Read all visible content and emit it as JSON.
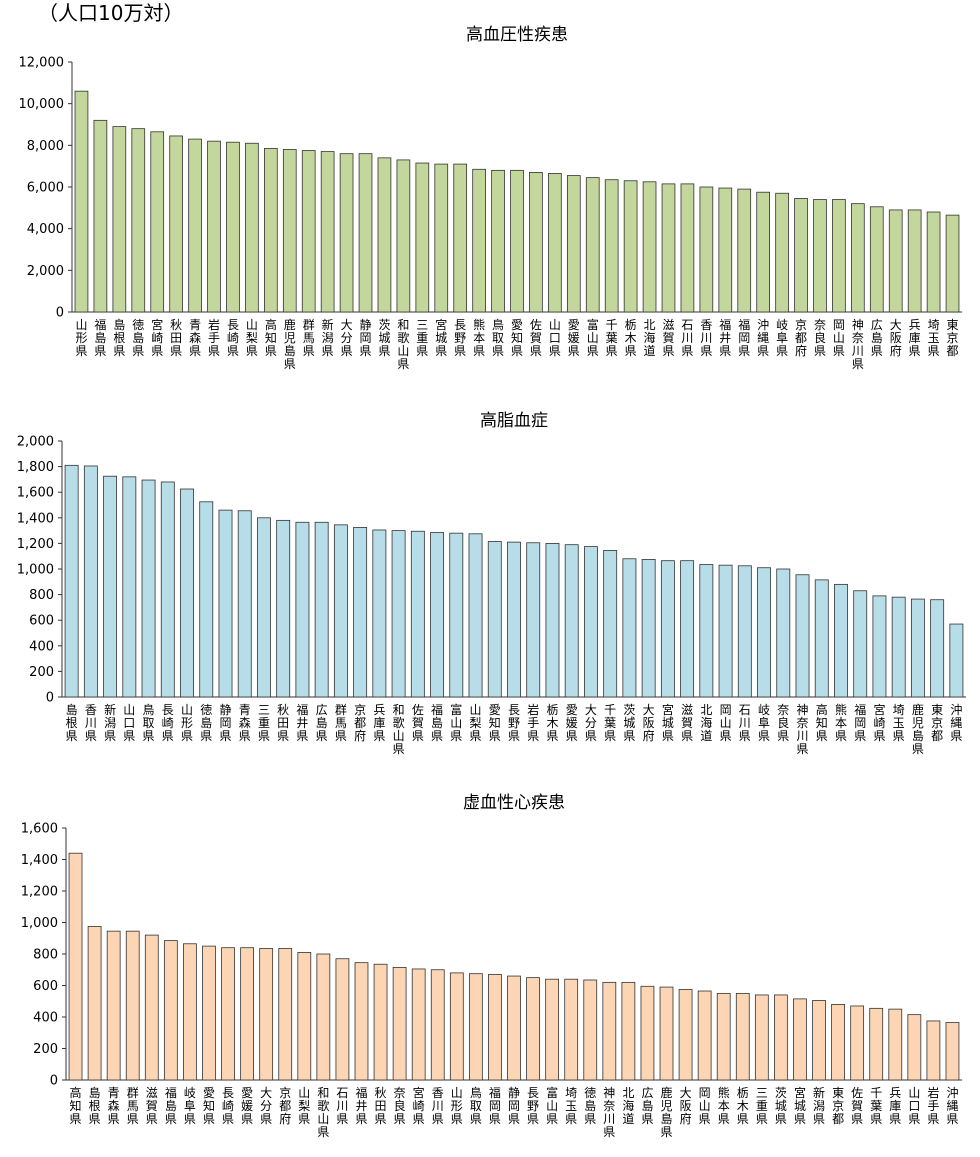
{
  "unit_label": "（人口10万対）",
  "chart_data": [
    {
      "type": "bar",
      "title": "高血圧性疾患",
      "ylim": [
        0,
        12000
      ],
      "yticks": [
        0,
        2000,
        4000,
        6000,
        8000,
        10000,
        12000
      ],
      "ytick_labels": [
        "0",
        "2,000",
        "4,000",
        "6,000",
        "8,000",
        "10,000",
        "12,000"
      ],
      "grid": false,
      "bar_color": "#c3d69b",
      "categories": [
        "山形県",
        "福島県",
        "島根県",
        "徳島県",
        "宮崎県",
        "秋田県",
        "青森県",
        "岩手県",
        "長崎県",
        "山梨県",
        "高知県",
        "鹿児島県",
        "群馬県",
        "新潟県",
        "大分県",
        "静岡県",
        "茨城県",
        "和歌山県",
        "三重県",
        "宮城県",
        "長野県",
        "熊本県",
        "鳥取県",
        "愛知県",
        "佐賀県",
        "山口県",
        "愛媛県",
        "富山県",
        "千葉県",
        "栃木県",
        "北海道",
        "滋賀県",
        "石川県",
        "香川県",
        "福井県",
        "福岡県",
        "沖縄県",
        "岐阜県",
        "京都府",
        "奈良県",
        "岡山県",
        "神奈川県",
        "広島県",
        "大阪府",
        "兵庫県",
        "埼玉県",
        "東京都"
      ],
      "values": [
        10600,
        9200,
        8900,
        8800,
        8650,
        8450,
        8300,
        8200,
        8150,
        8100,
        7850,
        7800,
        7750,
        7700,
        7600,
        7600,
        7400,
        7300,
        7150,
        7100,
        7100,
        6850,
        6800,
        6800,
        6700,
        6650,
        6550,
        6450,
        6350,
        6300,
        6250,
        6150,
        6150,
        6000,
        5950,
        5900,
        5750,
        5700,
        5450,
        5400,
        5400,
        5200,
        5050,
        4900,
        4900,
        4800,
        4650
      ]
    },
    {
      "type": "bar",
      "title": "高脂血症",
      "ylim": [
        0,
        2000
      ],
      "yticks": [
        0,
        200,
        400,
        600,
        800,
        1000,
        1200,
        1400,
        1600,
        1800,
        2000
      ],
      "ytick_labels": [
        "0",
        "200",
        "400",
        "600",
        "800",
        "1,000",
        "1,200",
        "1,400",
        "1,600",
        "1,800",
        "2,000"
      ],
      "grid": false,
      "bar_color": "#b7dde8",
      "categories": [
        "島根県",
        "香川県",
        "新潟県",
        "山口県",
        "鳥取県",
        "長崎県",
        "山形県",
        "徳島県",
        "静岡県",
        "青森県",
        "三重県",
        "秋田県",
        "福井県",
        "広島県",
        "群馬県",
        "京都府",
        "兵庫県",
        "和歌山県",
        "佐賀県",
        "福島県",
        "富山県",
        "山梨県",
        "愛知県",
        "長野県",
        "岩手県",
        "栃木県",
        "愛媛県",
        "大分県",
        "千葉県",
        "茨城県",
        "大阪府",
        "宮城県",
        "滋賀県",
        "北海道",
        "岡山県",
        "石川県",
        "岐阜県",
        "奈良県",
        "神奈川県",
        "高知県",
        "熊本県",
        "福岡県",
        "宮崎県",
        "埼玉県",
        "鹿児島県",
        "東京都",
        "沖縄県"
      ],
      "values": [
        1810,
        1805,
        1725,
        1720,
        1695,
        1680,
        1625,
        1525,
        1460,
        1455,
        1400,
        1380,
        1365,
        1365,
        1345,
        1325,
        1305,
        1300,
        1295,
        1285,
        1280,
        1275,
        1215,
        1210,
        1205,
        1200,
        1190,
        1175,
        1145,
        1080,
        1075,
        1065,
        1065,
        1035,
        1030,
        1025,
        1010,
        1000,
        955,
        915,
        880,
        830,
        790,
        780,
        765,
        760,
        570
      ]
    },
    {
      "type": "bar",
      "title": "虚血性心疾患",
      "ylim": [
        0,
        1600
      ],
      "yticks": [
        0,
        200,
        400,
        600,
        800,
        1000,
        1200,
        1400,
        1600
      ],
      "ytick_labels": [
        "0",
        "200",
        "400",
        "600",
        "800",
        "1,000",
        "1,200",
        "1,400",
        "1,600"
      ],
      "grid": false,
      "bar_color": "#fcd5b5",
      "categories": [
        "高知県",
        "島根県",
        "青森県",
        "群馬県",
        "滋賀県",
        "福島県",
        "岐阜県",
        "愛知県",
        "長崎県",
        "愛媛県",
        "大分県",
        "京都府",
        "山梨県",
        "和歌山県",
        "石川県",
        "福井県",
        "秋田県",
        "奈良県",
        "宮崎県",
        "香川県",
        "山形県",
        "鳥取県",
        "福岡県",
        "静岡県",
        "長野県",
        "富山県",
        "埼玉県",
        "徳島県",
        "神奈川県",
        "北海道",
        "広島県",
        "鹿児島県",
        "大阪府",
        "岡山県",
        "熊本県",
        "栃木県",
        "三重県",
        "茨城県",
        "宮城県",
        "新潟県",
        "東京都",
        "佐賀県",
        "千葉県",
        "兵庫県",
        "山口県",
        "岩手県",
        "沖縄県"
      ],
      "values": [
        1440,
        975,
        945,
        945,
        920,
        885,
        865,
        850,
        840,
        840,
        835,
        835,
        810,
        800,
        770,
        745,
        735,
        715,
        705,
        700,
        680,
        675,
        670,
        660,
        650,
        640,
        640,
        635,
        620,
        620,
        595,
        590,
        575,
        565,
        550,
        550,
        540,
        540,
        515,
        505,
        480,
        470,
        455,
        450,
        415,
        375,
        365
      ]
    }
  ]
}
